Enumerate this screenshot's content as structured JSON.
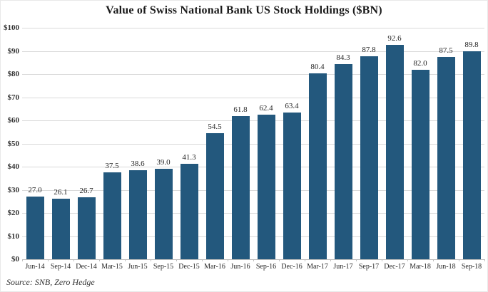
{
  "chart_data": {
    "type": "bar",
    "title": "Value of Swiss National Bank US Stock Holdings ($BN)",
    "source": "Source: SNB, Zero Hedge",
    "categories": [
      "Jun-14",
      "Sep-14",
      "Dec-14",
      "Mar-15",
      "Jun-15",
      "Sep-15",
      "Dec-15",
      "Mar-16",
      "Jun-16",
      "Sep-16",
      "Dec-16",
      "Mar-17",
      "Jun-17",
      "Sep-17",
      "Dec-17",
      "Mar-18",
      "Jun-18",
      "Sep-18"
    ],
    "values": [
      27.0,
      26.1,
      26.7,
      37.5,
      38.6,
      39.0,
      41.3,
      54.5,
      61.8,
      62.4,
      63.4,
      80.4,
      84.3,
      87.8,
      92.6,
      82.0,
      87.5,
      89.8
    ],
    "value_labels": [
      "27.0",
      "26.1",
      "26.7",
      "37.5",
      "38.6",
      "39.0",
      "41.3",
      "54.5",
      "61.8",
      "62.4",
      "63.4",
      "80.4",
      "84.3",
      "87.8",
      "92.6",
      "82.0",
      "87.5",
      "89.8"
    ],
    "ylim": [
      0,
      100
    ],
    "ytick_step": 10,
    "ytick_labels": [
      "$0",
      "$10",
      "$20",
      "$30",
      "$40",
      "$50",
      "$60",
      "$70",
      "$80",
      "$90",
      "$100"
    ],
    "grid": "horizontal",
    "legend": "none",
    "bar_color": "#23587d",
    "gridline_color": "#d9d9d9",
    "axis_line_color": "#bdbdbd",
    "text_color": "#262626"
  }
}
